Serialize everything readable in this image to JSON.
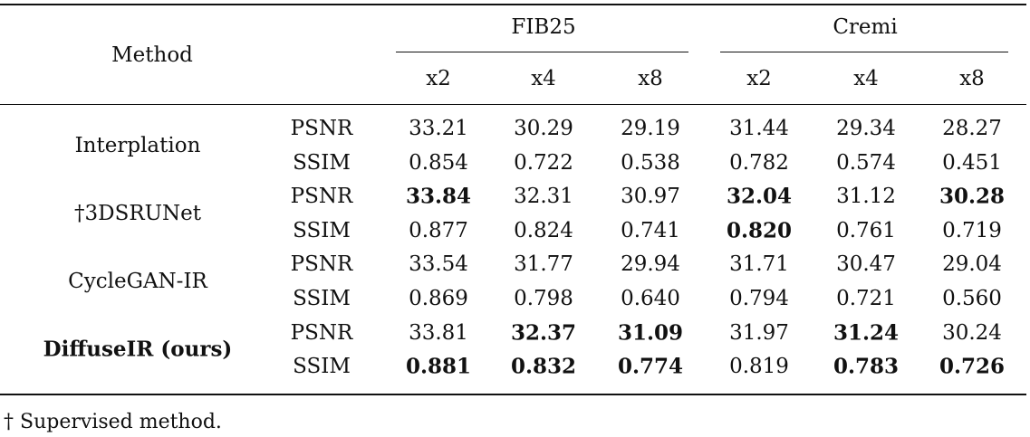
{
  "table": {
    "method_header": "Method",
    "groups": [
      {
        "label": "FIB25",
        "scales": [
          "x2",
          "x4",
          "x8"
        ]
      },
      {
        "label": "Cremi",
        "scales": [
          "x2",
          "x4",
          "x8"
        ]
      }
    ],
    "rows": [
      {
        "method": "Interplation",
        "method_bold": false,
        "metrics": [
          {
            "name": "PSNR",
            "values": [
              "33.21",
              "30.29",
              "29.19",
              "31.44",
              "29.34",
              "28.27"
            ],
            "bold": [
              false,
              false,
              false,
              false,
              false,
              false
            ]
          },
          {
            "name": "SSIM",
            "values": [
              "0.854",
              "0.722",
              "0.538",
              "0.782",
              "0.574",
              "0.451"
            ],
            "bold": [
              false,
              false,
              false,
              false,
              false,
              false
            ]
          }
        ]
      },
      {
        "method": "†3DSRUNet",
        "method_bold": false,
        "metrics": [
          {
            "name": "PSNR",
            "values": [
              "33.84",
              "32.31",
              "30.97",
              "32.04",
              "31.12",
              "30.28"
            ],
            "bold": [
              true,
              false,
              false,
              true,
              false,
              true
            ]
          },
          {
            "name": "SSIM",
            "values": [
              "0.877",
              "0.824",
              "0.741",
              "0.820",
              "0.761",
              "0.719"
            ],
            "bold": [
              false,
              false,
              false,
              true,
              false,
              false
            ]
          }
        ]
      },
      {
        "method": "CycleGAN-IR",
        "method_bold": false,
        "metrics": [
          {
            "name": "PSNR",
            "values": [
              "33.54",
              "31.77",
              "29.94",
              "31.71",
              "30.47",
              "29.04"
            ],
            "bold": [
              false,
              false,
              false,
              false,
              false,
              false
            ]
          },
          {
            "name": "SSIM",
            "values": [
              "0.869",
              "0.798",
              "0.640",
              "0.794",
              "0.721",
              "0.560"
            ],
            "bold": [
              false,
              false,
              false,
              false,
              false,
              false
            ]
          }
        ]
      },
      {
        "method": "DiffuseIR (ours)",
        "method_bold": true,
        "metrics": [
          {
            "name": "PSNR",
            "values": [
              "33.81",
              "32.37",
              "31.09",
              "31.97",
              "31.24",
              "30.24"
            ],
            "bold": [
              false,
              true,
              true,
              false,
              true,
              false
            ]
          },
          {
            "name": "SSIM",
            "values": [
              "0.881",
              "0.832",
              "0.774",
              "0.819",
              "0.783",
              "0.726"
            ],
            "bold": [
              true,
              true,
              true,
              false,
              true,
              true
            ]
          }
        ]
      }
    ],
    "footnote": "† Supervised method."
  }
}
